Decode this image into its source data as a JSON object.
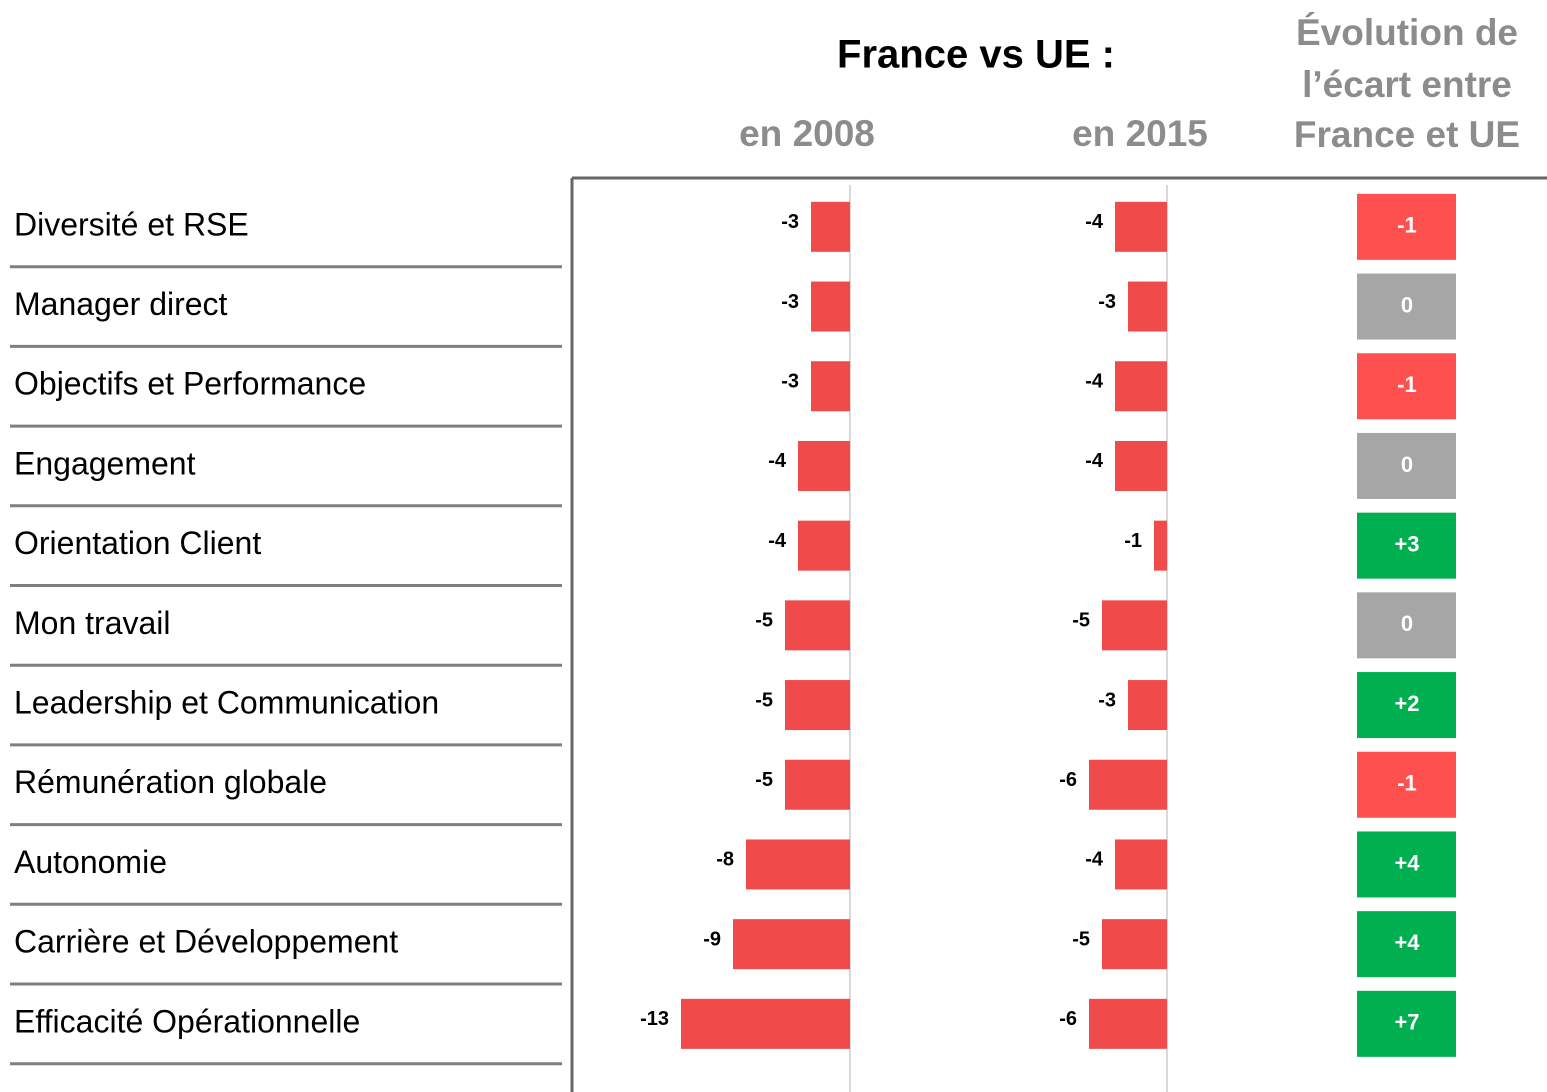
{
  "chart_data": {
    "type": "bar",
    "title": "France vs UE :",
    "categories": [
      "Diversité et RSE",
      "Manager direct",
      "Objectifs et Performance",
      "Engagement",
      "Orientation Client",
      "Mon travail",
      "Leadership et Communication",
      "Rémunération globale",
      "Autonomie",
      "Carrière et Développement",
      "Efficacité Opérationnelle"
    ],
    "series": [
      {
        "name": "en 2008",
        "color": "#f04a4a",
        "values": [
          -3,
          -3,
          -3,
          -4,
          -4,
          -5,
          -5,
          -5,
          -8,
          -9,
          -13
        ]
      },
      {
        "name": "en 2015",
        "color": "#f04a4a",
        "values": [
          -4,
          -3,
          -4,
          -4,
          -1,
          -5,
          -3,
          -6,
          -4,
          -5,
          -6
        ]
      }
    ],
    "evolution": {
      "name_lines": [
        "Évolution de",
        "l’écart entre",
        "France et UE"
      ],
      "values": [
        -1,
        0,
        -1,
        0,
        3,
        0,
        2,
        -1,
        4,
        4,
        7
      ],
      "value_labels": [
        "-1",
        "0",
        "-1",
        "0",
        "+3",
        "0",
        "+2",
        "-1",
        "+4",
        "+4",
        "+7"
      ],
      "colors": [
        "#ff5050",
        "#a6a6a6",
        "#ff5050",
        "#a6a6a6",
        "#00b050",
        "#a6a6a6",
        "#00b050",
        "#ff5050",
        "#00b050",
        "#00b050",
        "#00b050"
      ]
    }
  }
}
